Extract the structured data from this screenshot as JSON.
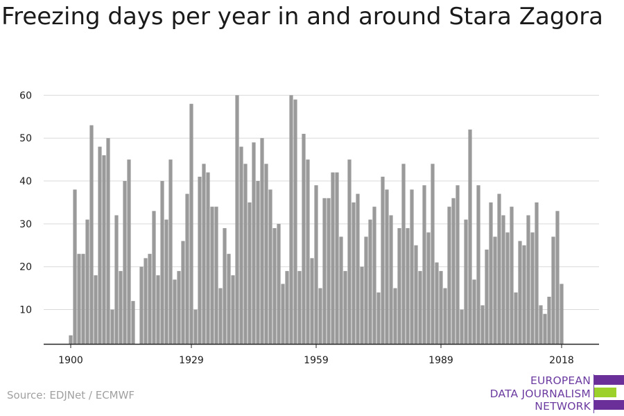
{
  "title": "Freezing days per year in and around Stara Zagora",
  "source": "Source: EDJNet / ECMWF",
  "logo": {
    "lines": [
      "EUROPEAN",
      "DATA JOURNALISM",
      "NETWORK"
    ],
    "colors": [
      "#6b2f9a",
      "#9bd12a",
      "#6b2f9a"
    ]
  },
  "colors": {
    "bar": "#9a9a9a",
    "grid": "#d9d9d9",
    "axis": "#222222",
    "text": "#1a1a1a"
  },
  "chart_data": {
    "type": "bar",
    "title": "Freezing days per year in and around Stara Zagora",
    "xlabel": "",
    "ylabel": "",
    "ylim": [
      2,
      62
    ],
    "yticks": [
      10,
      20,
      30,
      40,
      50,
      60
    ],
    "xticks": [
      1900,
      1929,
      1959,
      1989,
      2018
    ],
    "grid": true,
    "x": [
      1900,
      1901,
      1902,
      1903,
      1904,
      1905,
      1906,
      1907,
      1908,
      1909,
      1910,
      1911,
      1912,
      1913,
      1914,
      1915,
      1916,
      1917,
      1918,
      1919,
      1920,
      1921,
      1922,
      1923,
      1924,
      1925,
      1926,
      1927,
      1928,
      1929,
      1930,
      1931,
      1932,
      1933,
      1934,
      1935,
      1936,
      1937,
      1938,
      1939,
      1940,
      1941,
      1942,
      1943,
      1944,
      1945,
      1946,
      1947,
      1948,
      1949,
      1950,
      1951,
      1952,
      1953,
      1954,
      1955,
      1956,
      1957,
      1958,
      1959,
      1960,
      1961,
      1962,
      1963,
      1964,
      1965,
      1966,
      1967,
      1968,
      1969,
      1970,
      1971,
      1972,
      1973,
      1974,
      1975,
      1976,
      1977,
      1978,
      1979,
      1980,
      1981,
      1982,
      1983,
      1984,
      1985,
      1986,
      1987,
      1988,
      1989,
      1990,
      1991,
      1992,
      1993,
      1994,
      1995,
      1996,
      1997,
      1998,
      1999,
      2000,
      2001,
      2002,
      2003,
      2004,
      2005,
      2006,
      2007,
      2008,
      2009,
      2010,
      2011,
      2012,
      2013,
      2014,
      2015,
      2016,
      2017,
      2018
    ],
    "values": [
      4,
      38,
      23,
      23,
      31,
      53,
      18,
      48,
      46,
      50,
      10,
      32,
      19,
      40,
      45,
      12,
      null,
      20,
      22,
      23,
      33,
      18,
      40,
      31,
      45,
      17,
      19,
      26,
      37,
      58,
      10,
      41,
      44,
      42,
      34,
      34,
      15,
      29,
      23,
      18,
      60,
      48,
      44,
      35,
      49,
      40,
      50,
      44,
      38,
      29,
      30,
      16,
      19,
      60,
      59,
      19,
      51,
      45,
      22,
      39,
      15,
      36,
      36,
      42,
      42,
      27,
      19,
      45,
      35,
      37,
      20,
      27,
      31,
      34,
      14,
      41,
      38,
      32,
      15,
      29,
      44,
      29,
      38,
      25,
      19,
      39,
      28,
      44,
      21,
      19,
      15,
      34,
      36,
      39,
      10,
      31,
      52,
      17,
      39,
      11,
      24,
      35,
      27,
      37,
      32,
      28,
      34,
      14,
      26,
      25,
      32,
      28,
      35,
      11,
      9,
      13,
      27,
      33,
      16
    ]
  }
}
